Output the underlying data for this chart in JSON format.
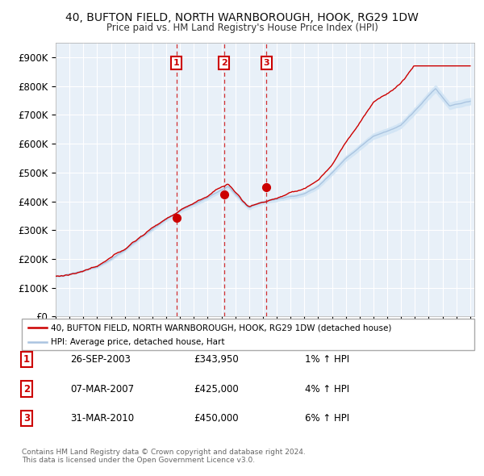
{
  "title": "40, BUFTON FIELD, NORTH WARNBOROUGH, HOOK, RG29 1DW",
  "subtitle": "Price paid vs. HM Land Registry's House Price Index (HPI)",
  "ylim": [
    0,
    950000
  ],
  "yticks": [
    0,
    100000,
    200000,
    300000,
    400000,
    500000,
    600000,
    700000,
    800000,
    900000
  ],
  "ytick_labels": [
    "£0",
    "£100K",
    "£200K",
    "£300K",
    "£400K",
    "£500K",
    "£600K",
    "£700K",
    "£800K",
    "£900K"
  ],
  "hpi_color": "#aac4e0",
  "hpi_fill_color": "#d0e4f5",
  "price_color": "#cc0000",
  "sale_dates_year": [
    2003.73,
    2007.18,
    2010.25
  ],
  "sale_prices": [
    343950,
    425000,
    450000
  ],
  "sale_labels": [
    "1",
    "2",
    "3"
  ],
  "legend_price_label": "40, BUFTON FIELD, NORTH WARNBOROUGH, HOOK, RG29 1DW (detached house)",
  "legend_hpi_label": "HPI: Average price, detached house, Hart",
  "table_rows": [
    [
      "1",
      "26-SEP-2003",
      "£343,950",
      "1% ↑ HPI"
    ],
    [
      "2",
      "07-MAR-2007",
      "£425,000",
      "4% ↑ HPI"
    ],
    [
      "3",
      "31-MAR-2010",
      "£450,000",
      "6% ↑ HPI"
    ]
  ],
  "footer": "Contains HM Land Registry data © Crown copyright and database right 2024.\nThis data is licensed under the Open Government Licence v3.0.",
  "background_color": "#ffffff",
  "plot_bg_color": "#e8f0f8",
  "grid_color": "#ffffff"
}
